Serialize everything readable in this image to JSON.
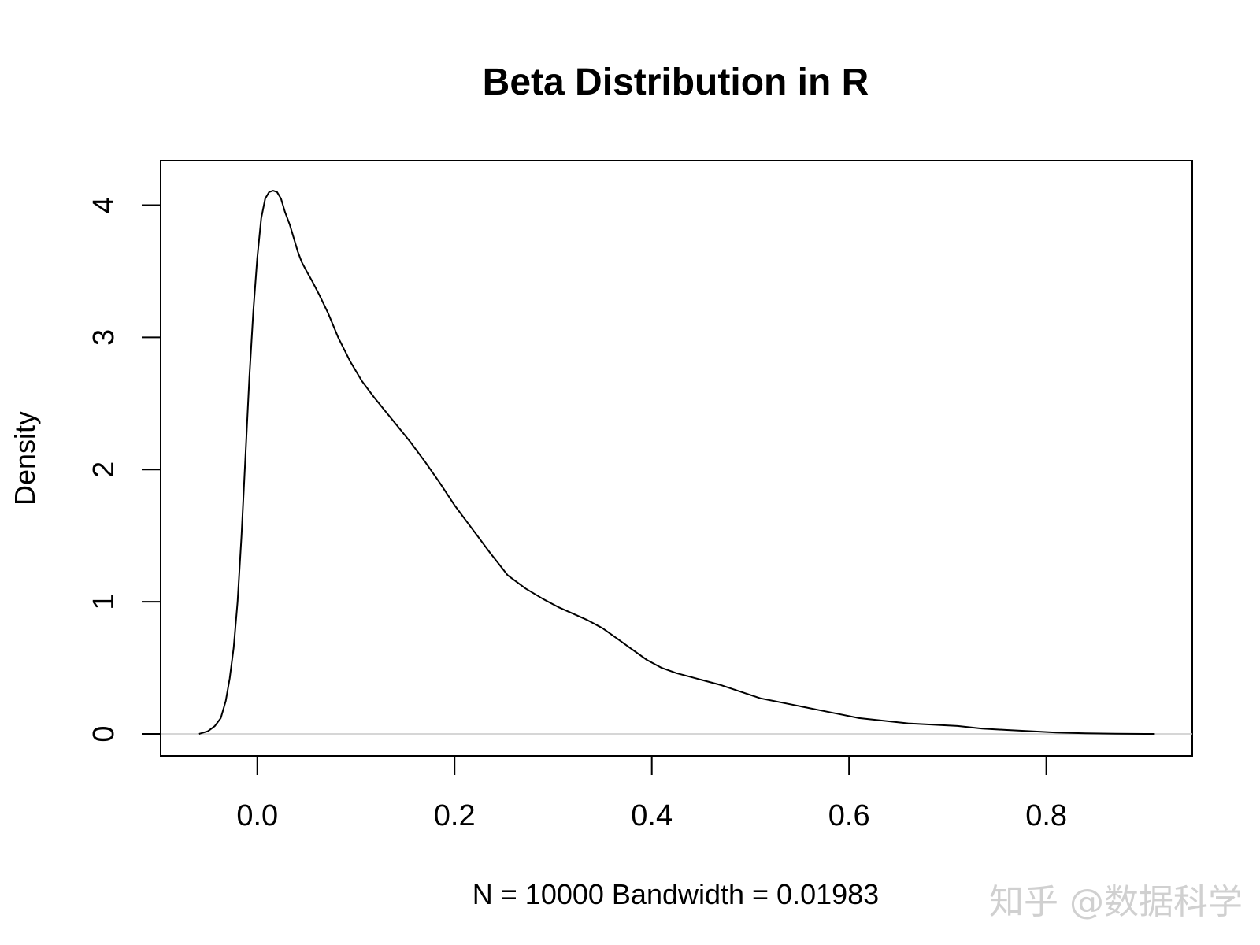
{
  "chart_data": {
    "type": "line",
    "title": "Beta Distribution in R",
    "xlabel": "N = 10000   Bandwidth = 0.01983",
    "ylabel": "Density",
    "xlim": [
      -0.098,
      0.948
    ],
    "ylim": [
      0,
      4.17
    ],
    "x_ticks": [
      0.0,
      0.2,
      0.4,
      0.6,
      0.8
    ],
    "x_tick_labels": [
      "0.0",
      "0.2",
      "0.4",
      "0.6",
      "0.8"
    ],
    "y_ticks": [
      0,
      1,
      2,
      3,
      4
    ],
    "y_tick_labels": [
      "0",
      "1",
      "2",
      "3",
      "4"
    ],
    "baseline": 0,
    "grid": false,
    "legend": "none",
    "line_color": "#000000",
    "baseline_color": "#c8c8c8",
    "series": [
      {
        "x": [
          -0.059,
          -0.05,
          -0.043,
          -0.037,
          -0.032,
          -0.028,
          -0.024,
          -0.02,
          -0.016,
          -0.012,
          -0.008,
          -0.004,
          0.0,
          0.004,
          0.008,
          0.012,
          0.016,
          0.02,
          0.024,
          0.028,
          0.033,
          0.037,
          0.041,
          0.045,
          0.05,
          0.056,
          0.063,
          0.072,
          0.082,
          0.094,
          0.106,
          0.118,
          0.13,
          0.142,
          0.155,
          0.17,
          0.185,
          0.2,
          0.218,
          0.236,
          0.254,
          0.272,
          0.29,
          0.305,
          0.32,
          0.335,
          0.35,
          0.365,
          0.38,
          0.395,
          0.41,
          0.425,
          0.44,
          0.455,
          0.47,
          0.49,
          0.51,
          0.53,
          0.55,
          0.57,
          0.59,
          0.61,
          0.635,
          0.66,
          0.685,
          0.71,
          0.735,
          0.76,
          0.785,
          0.81,
          0.84,
          0.87,
          0.9,
          0.91
        ],
        "y": [
          0.0,
          0.02,
          0.06,
          0.12,
          0.25,
          0.42,
          0.65,
          1.0,
          1.5,
          2.1,
          2.7,
          3.2,
          3.6,
          3.9,
          4.05,
          4.1,
          4.11,
          4.1,
          4.05,
          3.95,
          3.85,
          3.75,
          3.65,
          3.57,
          3.5,
          3.42,
          3.32,
          3.18,
          3.0,
          2.82,
          2.67,
          2.55,
          2.44,
          2.33,
          2.21,
          2.06,
          1.9,
          1.73,
          1.55,
          1.37,
          1.2,
          1.1,
          1.02,
          0.96,
          0.91,
          0.86,
          0.8,
          0.72,
          0.64,
          0.56,
          0.5,
          0.46,
          0.43,
          0.4,
          0.37,
          0.32,
          0.27,
          0.24,
          0.21,
          0.18,
          0.15,
          0.12,
          0.1,
          0.08,
          0.07,
          0.06,
          0.04,
          0.03,
          0.02,
          0.01,
          0.005,
          0.002,
          0.0,
          0.0
        ]
      }
    ]
  },
  "watermark": "知乎 @数据科学"
}
